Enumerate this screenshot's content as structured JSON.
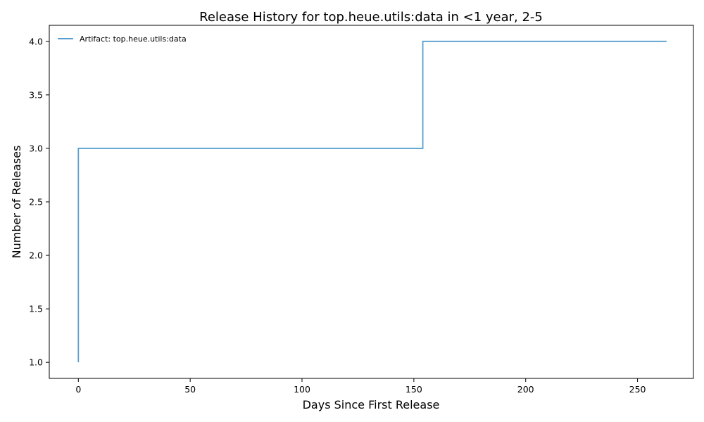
{
  "chart_data": {
    "type": "line",
    "step": true,
    "title": "Release History for top.heue.utils:data in <1 year, 2-5",
    "xlabel": "Days Since First Release",
    "ylabel": "Number of Releases",
    "xlim": [
      -13,
      275
    ],
    "ylim": [
      0.85,
      4.15
    ],
    "xticks": [
      0,
      50,
      100,
      150,
      200,
      250
    ],
    "yticks": [
      1.0,
      1.5,
      2.0,
      2.5,
      3.0,
      3.5,
      4.0
    ],
    "grid": false,
    "legend_position": "top-left",
    "series": [
      {
        "name": "Artifact: top.heue.utils:data",
        "color": "#5b9fd0",
        "x": [
          0,
          0,
          154,
          263
        ],
        "y": [
          1,
          3,
          4,
          4
        ]
      }
    ]
  }
}
